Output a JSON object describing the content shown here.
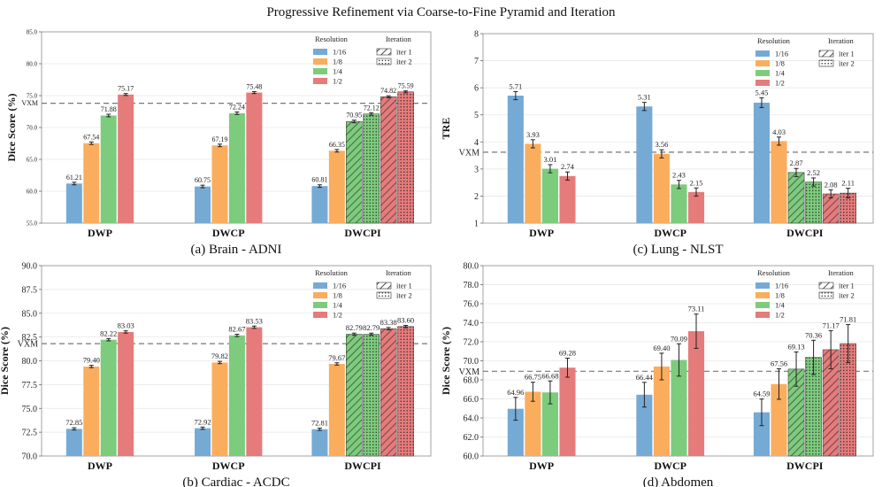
{
  "suptitle": "Progressive Refinement via Coarse-to-Fine Pyramid and Iteration",
  "legend": {
    "resolution_title": "Resolution",
    "iteration_title": "Iteration",
    "resolutions": [
      "1/16",
      "1/8",
      "1/4",
      "1/2"
    ],
    "iterations": [
      "iter 1",
      "iter 2"
    ]
  },
  "colors": {
    "r16": "#75aad5",
    "r8": "#fbad5e",
    "r4": "#7dcb7d",
    "r2": "#e57b7b"
  },
  "chart_data": [
    {
      "id": "a",
      "type": "bar",
      "title": "(a) Brain - ADNI",
      "ylabel": "Dice Score (%)",
      "ylim": [
        55,
        85
      ],
      "yticks": [
        55,
        60,
        65,
        70,
        75,
        80,
        85
      ],
      "ytick_decimals": 1,
      "tick_style": "small",
      "baseline": {
        "label": "VXM",
        "value": 73.8
      },
      "categories": [
        "DWP",
        "DWCP",
        "DWCPI"
      ],
      "groups": [
        {
          "bars": [
            {
              "res": "1/16",
              "value": 61.21,
              "err": 0.2
            },
            {
              "res": "1/8",
              "value": 67.54,
              "err": 0.2
            },
            {
              "res": "1/4",
              "value": 71.88,
              "err": 0.2
            },
            {
              "res": "1/2",
              "value": 75.17,
              "err": 0.15
            }
          ]
        },
        {
          "bars": [
            {
              "res": "1/16",
              "value": 60.75,
              "err": 0.2
            },
            {
              "res": "1/8",
              "value": 67.19,
              "err": 0.2
            },
            {
              "res": "1/4",
              "value": 72.24,
              "err": 0.2
            },
            {
              "res": "1/2",
              "value": 75.48,
              "err": 0.15
            }
          ]
        },
        {
          "bars": [
            {
              "res": "1/16",
              "value": 60.81,
              "err": 0.2
            },
            {
              "res": "1/8",
              "value": 66.35,
              "err": 0.2
            },
            {
              "res": "1/4",
              "iter": 1,
              "value": 70.95,
              "err": 0.2
            },
            {
              "res": "1/4",
              "iter": 2,
              "value": 72.12,
              "err": 0.2
            },
            {
              "res": "1/2",
              "iter": 1,
              "value": 74.82,
              "err": 0.15
            },
            {
              "res": "1/2",
              "iter": 2,
              "value": 75.59,
              "err": 0.15
            }
          ]
        }
      ]
    },
    {
      "id": "c",
      "type": "bar",
      "title": "(c) Lung - NLST",
      "ylabel": "TRE",
      "ylim": [
        1,
        8
      ],
      "yticks": [
        1,
        2,
        3,
        4,
        5,
        6,
        7,
        8
      ],
      "ytick_decimals": 0,
      "tick_style": "large",
      "baseline": {
        "label": "VXM",
        "value": 3.62
      },
      "categories": [
        "DWP",
        "DWCP",
        "DWCPI"
      ],
      "groups": [
        {
          "bars": [
            {
              "res": "1/16",
              "value": 5.71,
              "err": 0.15
            },
            {
              "res": "1/8",
              "value": 3.93,
              "err": 0.15
            },
            {
              "res": "1/4",
              "value": 3.01,
              "err": 0.15
            },
            {
              "res": "1/2",
              "value": 2.74,
              "err": 0.15
            }
          ]
        },
        {
          "bars": [
            {
              "res": "1/16",
              "value": 5.31,
              "err": 0.15
            },
            {
              "res": "1/8",
              "value": 3.56,
              "err": 0.15
            },
            {
              "res": "1/4",
              "value": 2.43,
              "err": 0.15
            },
            {
              "res": "1/2",
              "value": 2.15,
              "err": 0.15
            }
          ]
        },
        {
          "bars": [
            {
              "res": "1/16",
              "value": 5.45,
              "err": 0.18
            },
            {
              "res": "1/8",
              "value": 4.03,
              "err": 0.15
            },
            {
              "res": "1/4",
              "iter": 1,
              "value": 2.87,
              "err": 0.15
            },
            {
              "res": "1/4",
              "iter": 2,
              "value": 2.52,
              "err": 0.15
            },
            {
              "res": "1/2",
              "iter": 1,
              "value": 2.08,
              "err": 0.15
            },
            {
              "res": "1/2",
              "iter": 2,
              "value": 2.11,
              "err": 0.18
            }
          ]
        }
      ]
    },
    {
      "id": "b",
      "type": "bar",
      "title": "(b) Cardiac - ACDC",
      "ylabel": "Dice Score (%)",
      "ylim": [
        70,
        90
      ],
      "yticks": [
        70,
        72.5,
        75,
        77.5,
        80,
        82.5,
        85,
        87.5,
        90
      ],
      "ytick_decimals": 1,
      "tick_style": "large",
      "baseline": {
        "label": "VXM",
        "value": 81.8
      },
      "categories": [
        "DWP",
        "DWCP",
        "DWCPI"
      ],
      "groups": [
        {
          "bars": [
            {
              "res": "1/16",
              "value": 72.85,
              "err": 0.12
            },
            {
              "res": "1/8",
              "value": 79.4,
              "err": 0.12
            },
            {
              "res": "1/4",
              "value": 82.22,
              "err": 0.12
            },
            {
              "res": "1/2",
              "value": 83.03,
              "err": 0.12
            }
          ]
        },
        {
          "bars": [
            {
              "res": "1/16",
              "value": 72.92,
              "err": 0.12
            },
            {
              "res": "1/8",
              "value": 79.82,
              "err": 0.12
            },
            {
              "res": "1/4",
              "value": 82.67,
              "err": 0.12
            },
            {
              "res": "1/2",
              "value": 83.53,
              "err": 0.12
            }
          ]
        },
        {
          "bars": [
            {
              "res": "1/16",
              "value": 72.81,
              "err": 0.12
            },
            {
              "res": "1/8",
              "value": 79.67,
              "err": 0.12
            },
            {
              "res": "1/4",
              "iter": 1,
              "value": 82.79,
              "err": 0.12
            },
            {
              "res": "1/4",
              "iter": 2,
              "value": 82.79,
              "err": 0.12
            },
            {
              "res": "1/2",
              "iter": 1,
              "value": 83.38,
              "err": 0.12
            },
            {
              "res": "1/2",
              "iter": 2,
              "value": 83.6,
              "err": 0.12
            }
          ]
        }
      ]
    },
    {
      "id": "d",
      "type": "bar",
      "title": "(d) Abdomen",
      "ylabel": "Dice Score (%)",
      "ylim": [
        60,
        80
      ],
      "yticks": [
        60,
        62,
        64,
        66,
        68,
        70,
        72,
        74,
        76,
        78,
        80
      ],
      "ytick_decimals": 1,
      "tick_style": "large",
      "baseline": {
        "label": "VXM",
        "value": 68.9
      },
      "categories": [
        "DWP",
        "DWCP",
        "DWCPI"
      ],
      "groups": [
        {
          "bars": [
            {
              "res": "1/16",
              "value": 64.96,
              "err": 1.2
            },
            {
              "res": "1/8",
              "value": 66.75,
              "err": 1.0
            },
            {
              "res": "1/4",
              "value": 66.68,
              "err": 1.2
            },
            {
              "res": "1/2",
              "value": 69.28,
              "err": 1.0
            }
          ]
        },
        {
          "bars": [
            {
              "res": "1/16",
              "value": 66.44,
              "err": 1.3
            },
            {
              "res": "1/8",
              "value": 69.4,
              "err": 1.4
            },
            {
              "res": "1/4",
              "value": 70.09,
              "err": 1.7
            },
            {
              "res": "1/2",
              "value": 73.11,
              "err": 1.8
            }
          ]
        },
        {
          "bars": [
            {
              "res": "1/16",
              "value": 64.59,
              "err": 1.4
            },
            {
              "res": "1/8",
              "value": 67.56,
              "err": 1.6
            },
            {
              "res": "1/4",
              "iter": 1,
              "value": 69.13,
              "err": 1.8
            },
            {
              "res": "1/4",
              "iter": 2,
              "value": 70.36,
              "err": 1.8
            },
            {
              "res": "1/2",
              "iter": 1,
              "value": 71.17,
              "err": 2.0
            },
            {
              "res": "1/2",
              "iter": 2,
              "value": 71.81,
              "err": 2.0
            }
          ]
        }
      ]
    }
  ]
}
